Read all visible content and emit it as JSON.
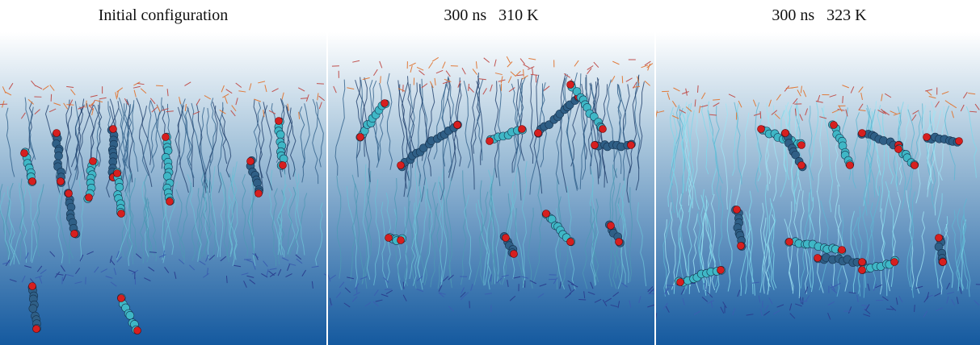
{
  "panels": [
    {
      "title": "Initial configuration"
    },
    {
      "title": "300 ns   310 K"
    },
    {
      "title": "300 ns   323 K"
    }
  ]
}
